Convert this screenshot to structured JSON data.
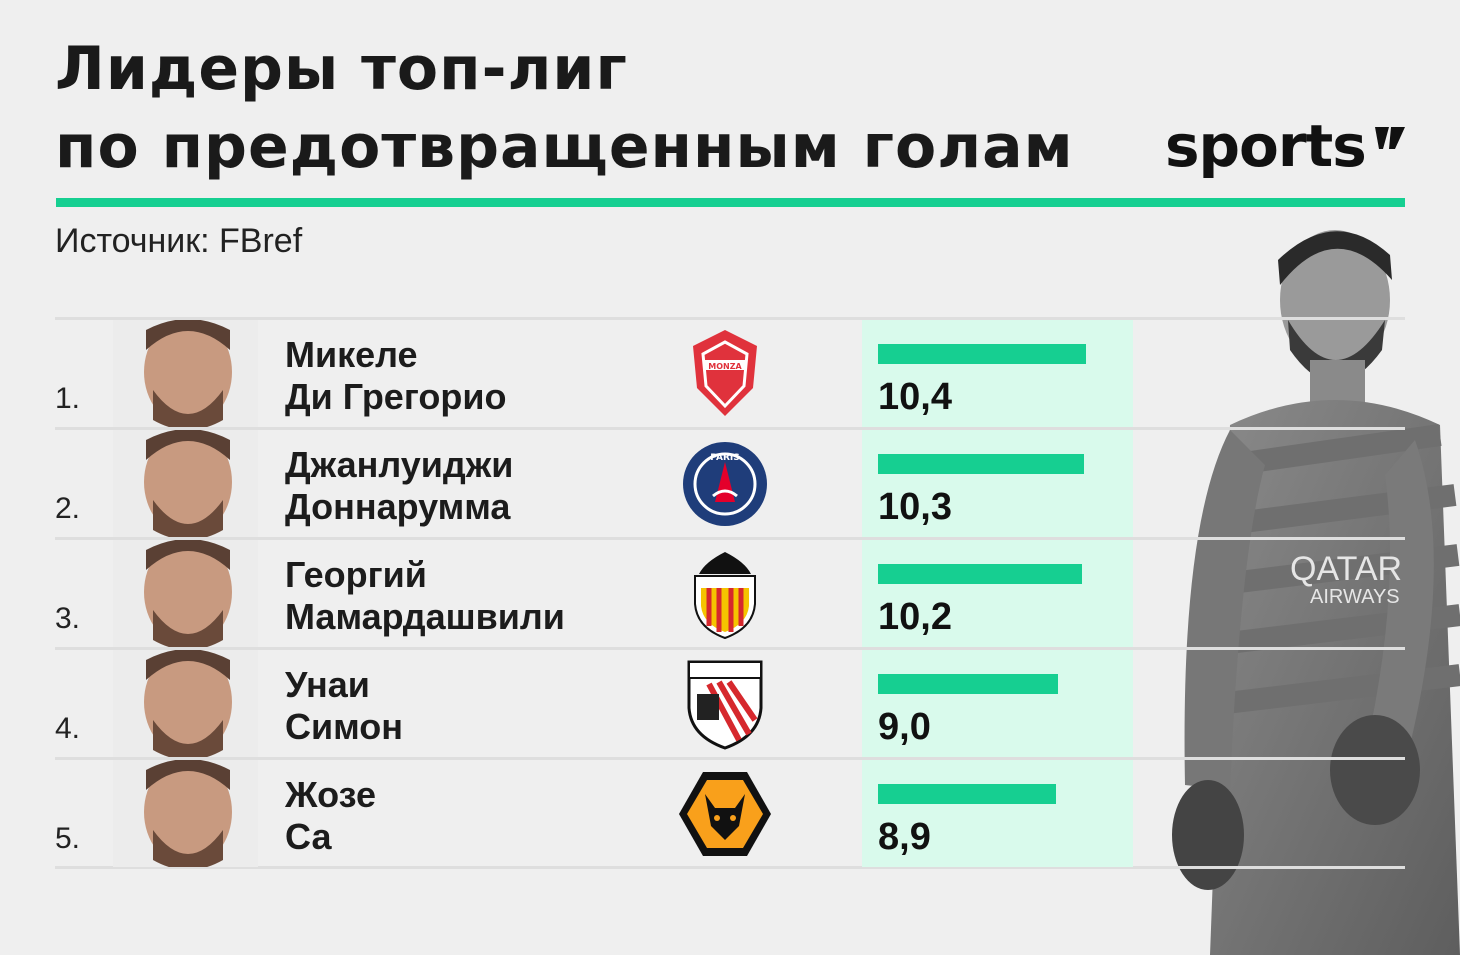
{
  "header": {
    "title_line1": "Лидеры топ-лиг",
    "title_line2": "по предотвращенным голам",
    "brand": "sports",
    "source": "Источник: FBref"
  },
  "colors": {
    "accent": "#16cf91",
    "bar_bg": "#d9faec"
  },
  "rows": [
    {
      "rank": "1.",
      "first": "Микеле",
      "last": "Ди Грегорио",
      "club_icon": "monza-crest-icon",
      "value_label": "10,4"
    },
    {
      "rank": "2.",
      "first": "Джанлуиджи",
      "last": "Доннарумма",
      "club_icon": "psg-crest-icon",
      "value_label": "10,3"
    },
    {
      "rank": "3.",
      "first": "Георгий",
      "last": "Мамардашвили",
      "club_icon": "valencia-crest-icon",
      "value_label": "10,2"
    },
    {
      "rank": "4.",
      "first": "Унаи",
      "last": "Симон",
      "club_icon": "athletic-crest-icon",
      "value_label": "9,0"
    },
    {
      "rank": "5.",
      "first": "Жозе",
      "last": "Са",
      "club_icon": "wolves-crest-icon",
      "value_label": "8,9"
    }
  ],
  "chart_data": {
    "type": "bar",
    "title": "Лидеры топ-лиг по предотвращенным голам",
    "categories": [
      "Микеле Ди Грегорио",
      "Джанлуиджи Доннарумма",
      "Георгий Мамардашвили",
      "Унаи Симон",
      "Жозе Са"
    ],
    "values": [
      10.4,
      10.3,
      10.2,
      9.0,
      8.9
    ],
    "orientation": "horizontal",
    "grid": false
  }
}
